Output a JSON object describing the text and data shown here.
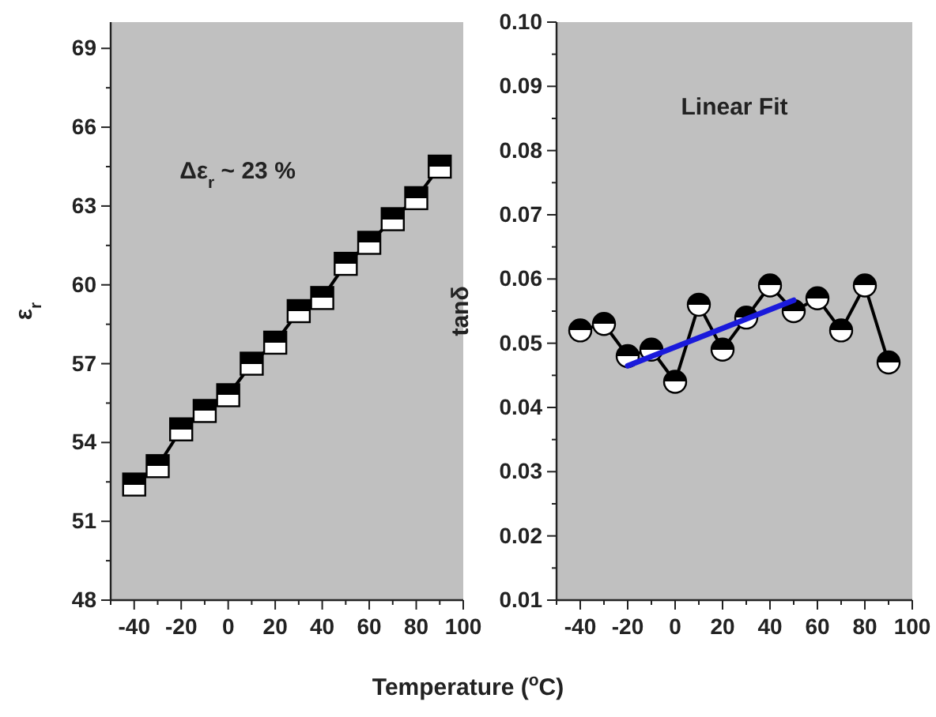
{
  "chart_data": [
    {
      "type": "line",
      "xlabel": "Temperature ($^{o}$C)",
      "ylabel": "ε$_{r}$",
      "annotations": [
        "Δε$_{r}$ ~ 23 %"
      ],
      "marker": "square",
      "grid": false,
      "xlim": [
        -50,
        100
      ],
      "xticks": [
        -40,
        -20,
        0,
        20,
        40,
        60,
        80,
        100,
        {
          "value": -50,
          "label": null
        },
        {
          "value": -30,
          "label": null
        },
        {
          "value": -10,
          "label": null
        },
        {
          "value": 10,
          "label": null
        },
        {
          "value": 30,
          "label": null
        },
        {
          "value": 50,
          "label": null
        },
        {
          "value": 70,
          "label": null
        },
        {
          "value": 90,
          "label": null
        }
      ],
      "ylim": [
        48,
        70
      ],
      "yticks": [
        48,
        51,
        54,
        57,
        60,
        63,
        66,
        69,
        {
          "value": 49.5,
          "label": null
        },
        {
          "value": 52.5,
          "label": null
        },
        {
          "value": 55.5,
          "label": null
        },
        {
          "value": 58.5,
          "label": null
        },
        {
          "value": 61.5,
          "label": null
        },
        {
          "value": 64.5,
          "label": null
        },
        {
          "value": 67.5,
          "label": null
        }
      ],
      "x": [
        -40,
        -30,
        -20,
        -10,
        0,
        10,
        20,
        30,
        40,
        50,
        60,
        70,
        80,
        90
      ],
      "series": [
        {
          "color": "#000000",
          "values": [
            52.4,
            53.1,
            54.5,
            55.2,
            55.8,
            57.0,
            57.8,
            59.0,
            59.5,
            60.8,
            61.6,
            62.5,
            63.3,
            64.5
          ]
        }
      ]
    },
    {
      "type": "line",
      "ylabel": "tanδ",
      "annotations": [
        "Linear Fit"
      ],
      "marker": "circle",
      "grid": false,
      "xlim": [
        -50,
        100
      ],
      "xticks": [
        -40,
        -20,
        0,
        20,
        40,
        60,
        80,
        100,
        {
          "value": -50,
          "label": null
        },
        {
          "value": -30,
          "label": null
        },
        {
          "value": -10,
          "label": null
        },
        {
          "value": 10,
          "label": null
        },
        {
          "value": 30,
          "label": null
        },
        {
          "value": 50,
          "label": null
        },
        {
          "value": 70,
          "label": null
        },
        {
          "value": 90,
          "label": null
        }
      ],
      "ylim": [
        0.01,
        0.1
      ],
      "yticks": [
        {
          "value": 0.01,
          "label": "0.01"
        },
        {
          "value": 0.02,
          "label": "0.02"
        },
        {
          "value": 0.03,
          "label": "0.03"
        },
        {
          "value": 0.04,
          "label": "0.04"
        },
        {
          "value": 0.05,
          "label": "0.05"
        },
        {
          "value": 0.06,
          "label": "0.06"
        },
        {
          "value": 0.07,
          "label": "0.07"
        },
        {
          "value": 0.08,
          "label": "0.08"
        },
        {
          "value": 0.09,
          "label": "0.09"
        },
        {
          "value": 0.1,
          "label": "0.10"
        },
        {
          "value": 0.015,
          "label": null
        },
        {
          "value": 0.025,
          "label": null
        },
        {
          "value": 0.035,
          "label": null
        },
        {
          "value": 0.045,
          "label": null
        },
        {
          "value": 0.055,
          "label": null
        },
        {
          "value": 0.065,
          "label": null
        },
        {
          "value": 0.075,
          "label": null
        },
        {
          "value": 0.085,
          "label": null
        },
        {
          "value": 0.095,
          "label": null
        }
      ],
      "x": [
        -40,
        -30,
        -20,
        -10,
        0,
        10,
        20,
        30,
        40,
        50,
        60,
        70,
        80,
        90
      ],
      "series": [
        {
          "color": "#000000",
          "values": [
            0.052,
            0.053,
            0.048,
            0.049,
            0.044,
            0.056,
            0.049,
            0.054,
            0.059,
            0.055,
            0.057,
            0.052,
            0.059,
            0.047
          ]
        },
        {
          "type": "line",
          "color": "#1a1adb",
          "marker": "none",
          "x": [
            -20,
            50
          ],
          "values": [
            0.0465,
            0.0567
          ]
        }
      ]
    }
  ]
}
